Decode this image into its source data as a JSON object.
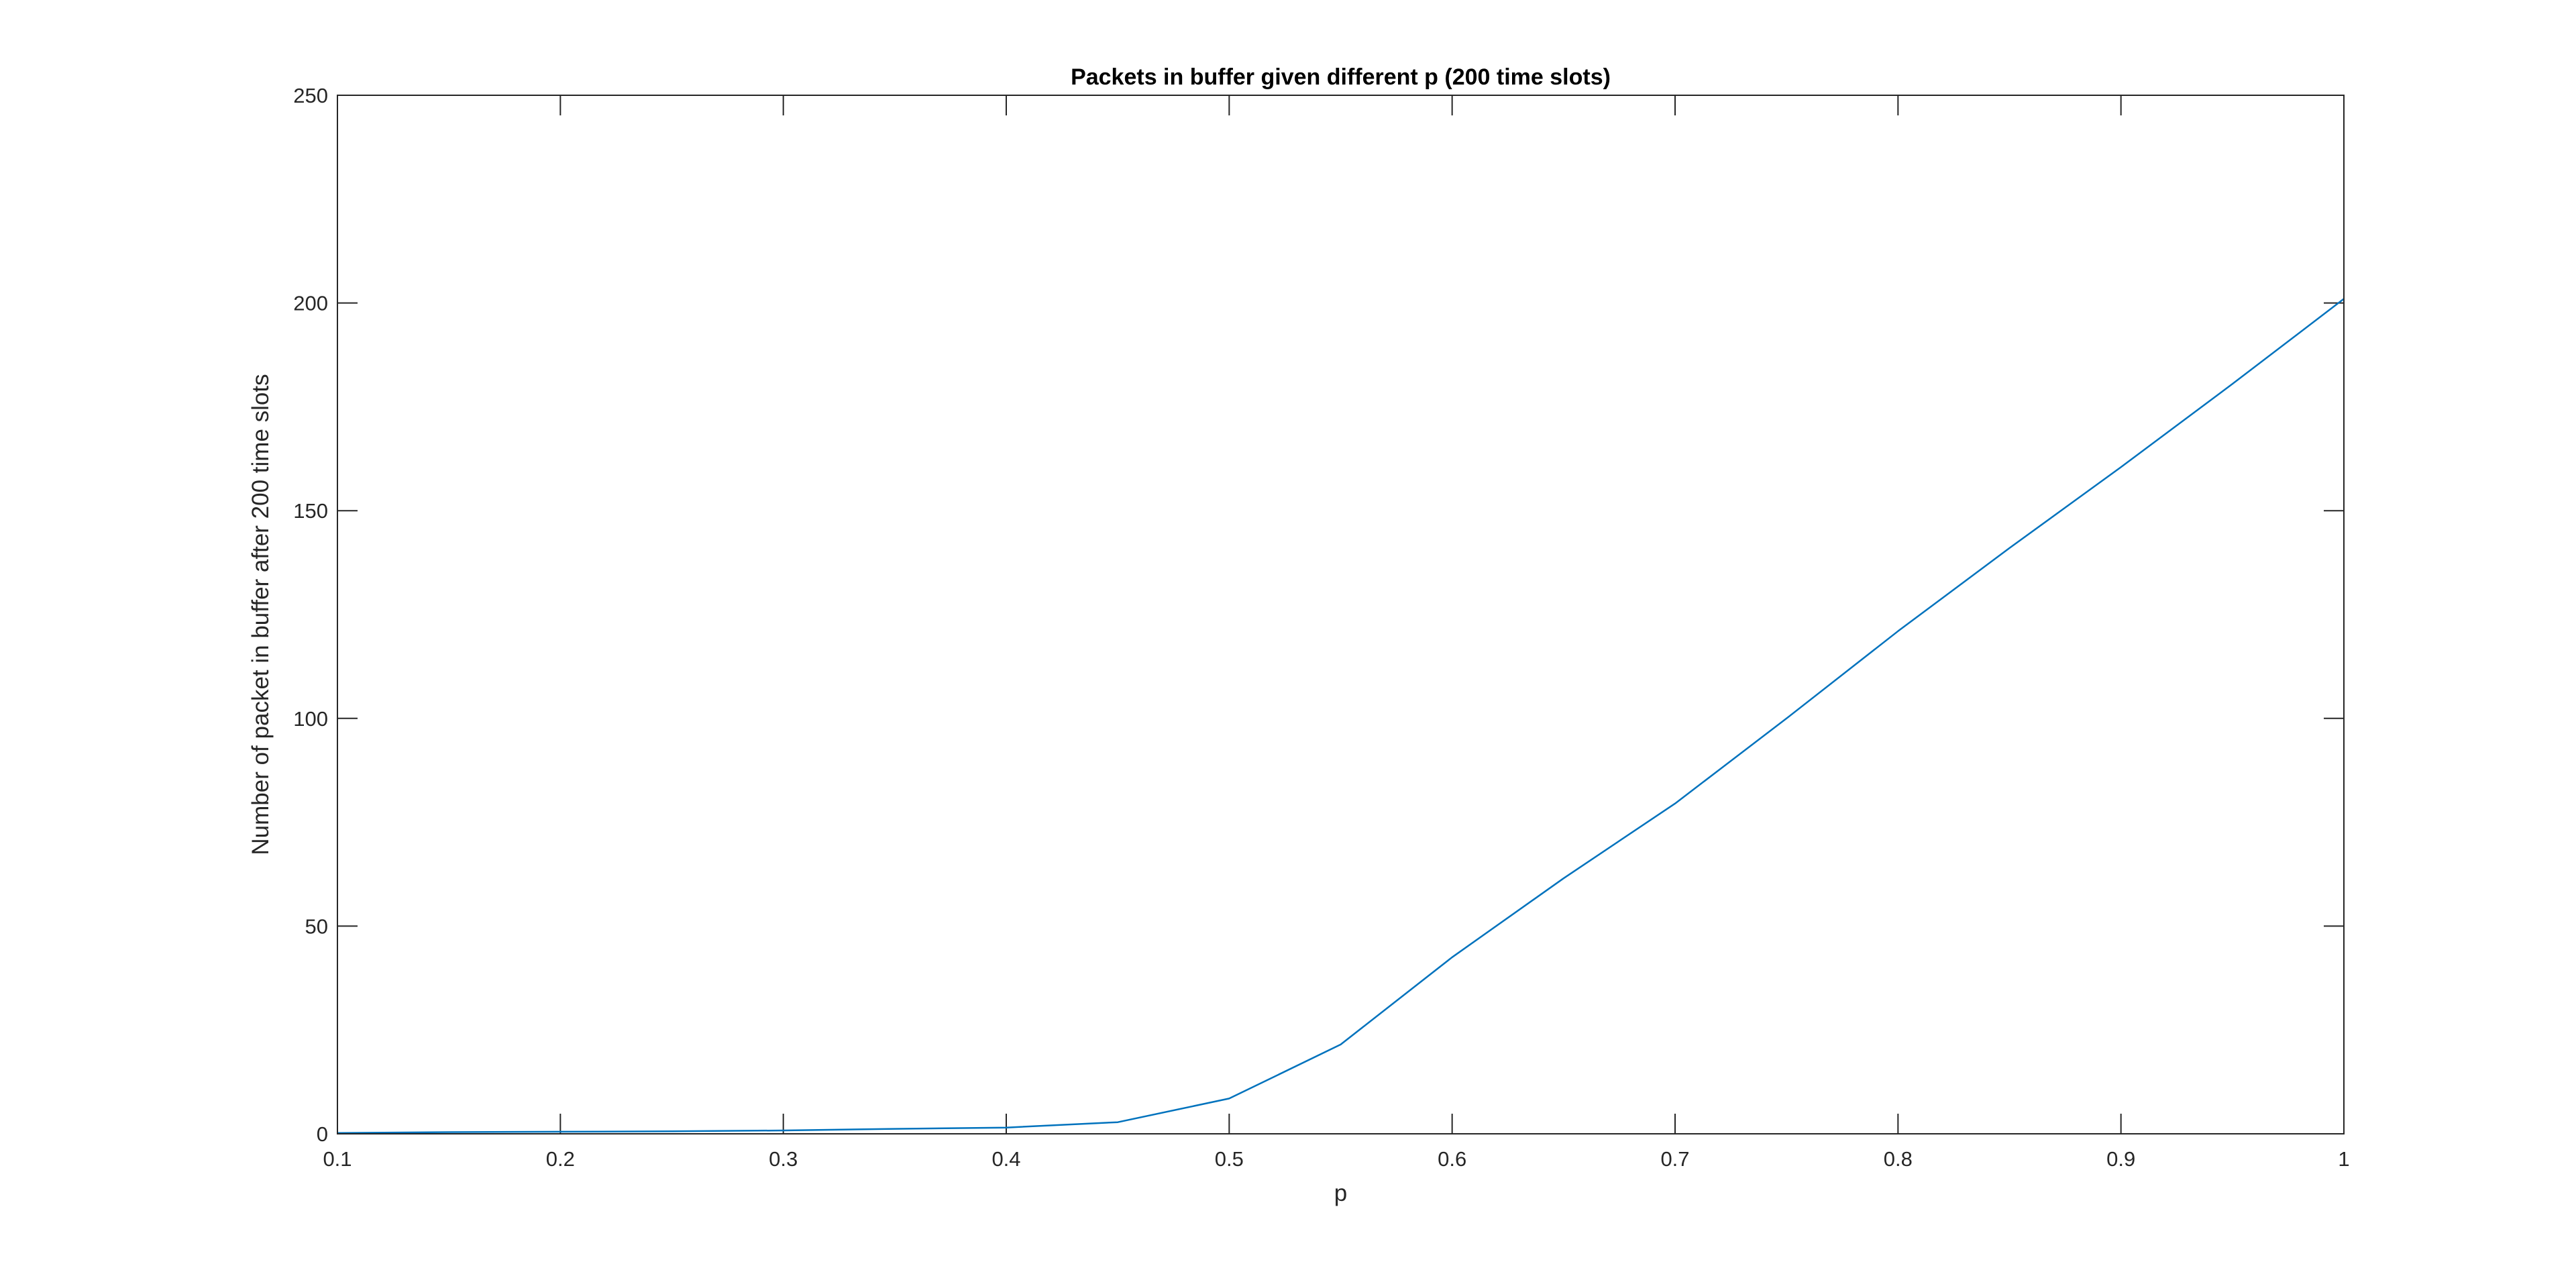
{
  "chart_data": {
    "type": "line",
    "title": "Packets in buffer given different p (200 time slots)",
    "xlabel": "p",
    "ylabel": "Number of packet in buffer after 200 time slots",
    "xlim": [
      0.1,
      1
    ],
    "ylim": [
      0,
      250
    ],
    "xticks": [
      0.1,
      0.2,
      0.3,
      0.4,
      0.5,
      0.6,
      0.7,
      0.8,
      0.9,
      1
    ],
    "xtick_labels": [
      "0.1",
      "0.2",
      "0.3",
      "0.4",
      "0.5",
      "0.6",
      "0.7",
      "0.8",
      "0.9",
      "1"
    ],
    "yticks": [
      0,
      50,
      100,
      150,
      200,
      250
    ],
    "ytick_labels": [
      "0",
      "50",
      "100",
      "150",
      "200",
      "250"
    ],
    "grid": false,
    "box": true,
    "series": [
      {
        "color": "#0072BD",
        "x": [
          0.1,
          0.15,
          0.2,
          0.25,
          0.3,
          0.35,
          0.4,
          0.45,
          0.5,
          0.55,
          0.6,
          0.65,
          0.7,
          0.75,
          0.8,
          0.85,
          0.9,
          0.95,
          1
        ],
        "y": [
          0.2,
          0.4,
          0.5,
          0.6,
          0.8,
          1.2,
          1.5,
          2.8,
          8.5,
          21.5,
          42.5,
          61.5,
          79.5,
          100.0,
          121.0,
          141.0,
          160.5,
          180.5,
          201.0
        ]
      }
    ]
  }
}
